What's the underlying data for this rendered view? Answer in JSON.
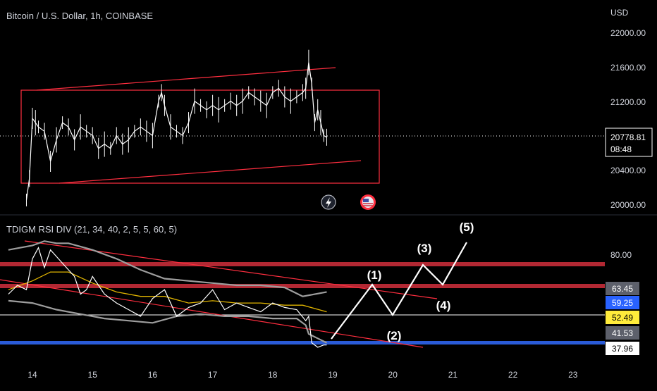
{
  "header": {
    "title": "Bitcoin / U.S. Dollar, 1h, COINBASE",
    "currency": "USD"
  },
  "price_axis": {
    "ticks": [
      "22000.00",
      "21600.00",
      "21200.00",
      "20400.00",
      "20000.00"
    ],
    "current_price": "20778.81",
    "countdown": "08:48"
  },
  "indicator": {
    "title": "TDIGM RSI DIV (21, 34, 40, 2, 5, 5, 60, 5)",
    "axis_tick": "80.00",
    "value_badges": [
      {
        "label": "63.45",
        "bg": "#5d606b",
        "fg": "#ffffff"
      },
      {
        "label": "59.25",
        "bg": "#2962ff",
        "fg": "#ffffff"
      },
      {
        "label": "52.49",
        "bg": "#ffeb3b",
        "fg": "#000000"
      },
      {
        "label": "41.53",
        "bg": "#5d606b",
        "fg": "#ffffff"
      },
      {
        "label": "37.96",
        "bg": "#ffffff",
        "fg": "#000000"
      }
    ]
  },
  "wave_labels": [
    "(1)",
    "(2)",
    "(3)",
    "(4)",
    "(5)"
  ],
  "time_axis": {
    "labels": [
      "14",
      "15",
      "16",
      "17",
      "18",
      "19",
      "20",
      "21",
      "22",
      "23"
    ]
  },
  "icons": [
    "lightning-icon",
    "us-flag-icon"
  ],
  "colors": {
    "background": "#000000",
    "up_candle": "#ffffff",
    "down_candle": "#ffffff",
    "annotation_red": "#ff2e3f",
    "band_red": "#b22833",
    "support_blue": "#2a5bd7",
    "rsi_line": "#ffffff",
    "rsi_signal": "#e0b400",
    "bollinger": "#9e9e9e"
  },
  "chart_data": {
    "type": "line",
    "title": "Bitcoin / U.S. Dollar, 1h, COINBASE",
    "xlabel": "",
    "ylabel": "USD",
    "ylim": [
      19950,
      22150
    ],
    "x_ticks": [
      "14",
      "15",
      "16",
      "17",
      "18",
      "19",
      "20",
      "21",
      "22",
      "23"
    ],
    "y_ticks": [
      20000,
      20400,
      21200,
      21600,
      22000
    ],
    "series": [
      {
        "name": "",
        "x": [
          13.9,
          13.95,
          14.0,
          14.05,
          14.1,
          14.2,
          14.3,
          14.4,
          14.5,
          14.6,
          14.7,
          14.8,
          14.9,
          15.0,
          15.1,
          15.2,
          15.3,
          15.4,
          15.5,
          15.6,
          15.7,
          15.8,
          15.9,
          16.0,
          16.1,
          16.15,
          16.2,
          16.3,
          16.4,
          16.5,
          16.6,
          16.7,
          16.8,
          16.9,
          17.0,
          17.1,
          17.2,
          17.3,
          17.4,
          17.5,
          17.6,
          17.7,
          17.8,
          17.9,
          18.0,
          18.1,
          18.2,
          18.3,
          18.4,
          18.5,
          18.55,
          18.6,
          18.65,
          18.7,
          18.75,
          18.8,
          18.85,
          18.9
        ],
        "values": [
          20050,
          20300,
          21000,
          20950,
          20900,
          20850,
          20500,
          20750,
          20950,
          20900,
          20750,
          20900,
          20850,
          20800,
          20650,
          20700,
          20650,
          20800,
          20700,
          20750,
          20850,
          20900,
          20850,
          20800,
          21200,
          21300,
          21150,
          20900,
          20850,
          20800,
          20950,
          21200,
          21150,
          21100,
          21150,
          21100,
          21150,
          21200,
          21150,
          21200,
          21300,
          21250,
          21200,
          21150,
          21300,
          21350,
          21250,
          21200,
          21250,
          21300,
          21350,
          21650,
          21400,
          20950,
          21100,
          20950,
          20800,
          20780
        ]
      }
    ],
    "annotations": {
      "wave_labels": [
        "(1)",
        "(2)",
        "(3)",
        "(4)",
        "(5)"
      ]
    },
    "indicator": {
      "name": "TDIGM RSI DIV (21, 34, 40, 2, 5, 5, 60, 5)",
      "ylim": [
        30,
        90
      ],
      "ticks": [
        80
      ],
      "levels": [
        {
          "value": 80,
          "color": "#b22833"
        },
        {
          "value": 63.45,
          "color": "#b22833"
        },
        {
          "value": 52.49,
          "color": "#ffffff"
        },
        {
          "value": 37.96,
          "color": "#2a5bd7"
        }
      ],
      "rsi": {
        "x": [
          13.6,
          13.75,
          13.9,
          14.0,
          14.1,
          14.2,
          14.3,
          14.4,
          14.5,
          14.6,
          14.7,
          14.8,
          14.9,
          15.0,
          15.2,
          15.4,
          15.6,
          15.8,
          16.0,
          16.2,
          16.4,
          16.6,
          16.8,
          17.0,
          17.2,
          17.4,
          17.6,
          17.8,
          18.0,
          18.2,
          18.4,
          18.55,
          18.6,
          18.65,
          18.75,
          18.85,
          18.9
        ],
        "values": [
          62,
          66,
          64,
          78,
          83,
          74,
          82,
          79,
          76,
          73,
          70,
          62,
          64,
          70,
          62,
          58,
          55,
          52,
          60,
          64,
          52,
          56,
          58,
          64,
          55,
          58,
          56,
          54,
          58,
          56,
          55,
          50,
          52,
          40,
          38,
          39,
          39
        ]
      },
      "signal": {
        "x": [
          13.6,
          14.0,
          14.3,
          14.6,
          15.0,
          15.4,
          15.8,
          16.2,
          16.6,
          17.0,
          17.4,
          17.8,
          18.2,
          18.5,
          18.9
        ],
        "values": [
          64,
          68,
          72,
          72,
          67,
          63,
          61,
          61,
          58,
          59,
          58,
          58,
          57,
          57,
          54
        ]
      },
      "bb_upper": {
        "x": [
          13.6,
          14.0,
          14.2,
          14.4,
          14.6,
          15.0,
          15.4,
          15.8,
          16.2,
          16.6,
          17.0,
          17.4,
          17.8,
          18.2,
          18.5,
          18.9
        ],
        "values": [
          82,
          84,
          86,
          85,
          85,
          82,
          78,
          73,
          69,
          68,
          67,
          66,
          66,
          65,
          61,
          63
        ]
      },
      "bb_lower": {
        "x": [
          13.6,
          14.0,
          14.4,
          14.8,
          15.2,
          15.6,
          16.0,
          16.4,
          16.8,
          17.2,
          17.6,
          18.0,
          18.4,
          18.55,
          18.6,
          18.75,
          18.9
        ],
        "values": [
          59,
          58,
          55,
          53,
          51,
          50,
          49,
          52,
          53,
          52,
          52,
          51,
          51,
          48,
          44,
          42,
          40
        ]
      }
    }
  }
}
